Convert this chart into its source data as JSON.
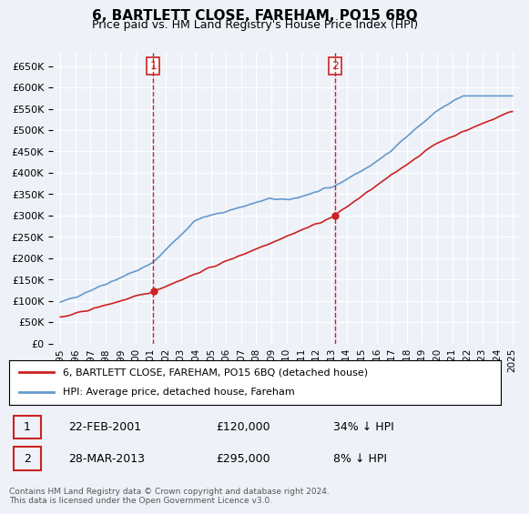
{
  "title": "6, BARTLETT CLOSE, FAREHAM, PO15 6BQ",
  "subtitle": "Price paid vs. HM Land Registry's House Price Index (HPI)",
  "hpi_color": "#6699CC",
  "price_color": "#CC2222",
  "sale1_date": "22-FEB-2001",
  "sale1_price": 120000,
  "sale1_label": "34% ↓ HPI",
  "sale2_date": "28-MAR-2013",
  "sale2_price": 295000,
  "sale2_label": "8% ↓ HPI",
  "legend_label1": "6, BARTLETT CLOSE, FAREHAM, PO15 6BQ (detached house)",
  "legend_label2": "HPI: Average price, detached house, Fareham",
  "footnote": "Contains HM Land Registry data © Crown copyright and database right 2024.\nThis data is licensed under the Open Government Licence v3.0.",
  "ylim": [
    0,
    680000
  ],
  "yticks": [
    0,
    50000,
    100000,
    150000,
    200000,
    250000,
    300000,
    350000,
    400000,
    450000,
    500000,
    550000,
    600000,
    650000
  ],
  "background_color": "#eef2f8",
  "plot_bg_color": "#eef2f8"
}
